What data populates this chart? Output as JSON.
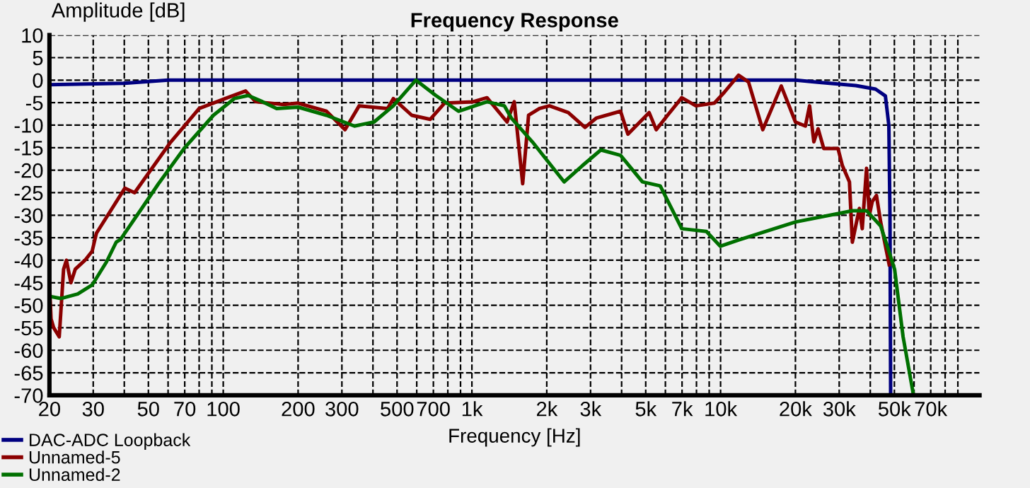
{
  "chart_data": {
    "type": "line",
    "title": "Frequency Response",
    "xlabel": "Frequency [Hz]",
    "ylabel": "Amplitude [dB]",
    "log": "x",
    "xlim": [
      20,
      110000
    ],
    "ylim": [
      -70,
      10
    ],
    "xticks": [
      20,
      30,
      {
        "value": 40,
        "label": null
      },
      50,
      {
        "value": 60,
        "label": null
      },
      70,
      {
        "value": 80,
        "label": null
      },
      {
        "value": 90,
        "label": null
      },
      100,
      200,
      300,
      {
        "value": 400,
        "label": null
      },
      500,
      {
        "value": 600,
        "label": null
      },
      700,
      {
        "value": 800,
        "label": null
      },
      {
        "value": 900,
        "label": null
      },
      {
        "value": 1000,
        "label": "1k"
      },
      {
        "value": 2000,
        "label": "2k"
      },
      {
        "value": 3000,
        "label": "3k"
      },
      {
        "value": 4000,
        "label": null
      },
      {
        "value": 5000,
        "label": "5k"
      },
      {
        "value": 6000,
        "label": null
      },
      {
        "value": 7000,
        "label": "7k"
      },
      {
        "value": 8000,
        "label": null
      },
      {
        "value": 9000,
        "label": null
      },
      {
        "value": 10000,
        "label": "10k"
      },
      {
        "value": 20000,
        "label": "20k"
      },
      {
        "value": 30000,
        "label": "30k"
      },
      {
        "value": 40000,
        "label": null
      },
      {
        "value": 50000,
        "label": "50k"
      },
      {
        "value": 60000,
        "label": null
      },
      {
        "value": 70000,
        "label": "70k"
      },
      {
        "value": 80000,
        "label": null
      },
      {
        "value": 90000,
        "label": null
      }
    ],
    "yticks": [
      10,
      5,
      0,
      -5,
      -10,
      -15,
      -20,
      -25,
      -30,
      -35,
      -40,
      -45,
      -50,
      -55,
      -60,
      -65,
      -70
    ],
    "grid": true,
    "line_style": "dashed",
    "legend": "bottom left",
    "series": [
      {
        "name": "DAC-ADC Loopback",
        "color": "#000080",
        "line_style": "solid",
        "x": [
          20,
          40,
          60,
          100,
          1000,
          10000,
          20000,
          25000,
          35000,
          42000,
          46000,
          47500,
          48000,
          48300
        ],
        "values": [
          -1,
          -0.7,
          0,
          0,
          0,
          0,
          0,
          -0.5,
          -1.2,
          -2,
          -3.5,
          -10,
          -30,
          -70
        ]
      },
      {
        "name": "Unnamed-5",
        "color": "#8b0000",
        "line_style": "solid",
        "x": [
          20,
          20.3,
          20.8,
          21.9,
          22.8,
          23.4,
          24.4,
          25.4,
          27.8,
          29.7,
          30.9,
          40.2,
          44,
          61,
          80,
          104,
          123,
          135,
          175,
          200,
          260,
          309,
          352,
          458,
          483,
          573,
          680,
          776,
          1010,
          1150,
          1385,
          1480,
          1600,
          1690,
          1870,
          2050,
          2440,
          2850,
          3170,
          3960,
          4240,
          5160,
          5510,
          6120,
          6980,
          7960,
          9440,
          10350,
          11810,
          12950,
          14780,
          17540,
          20000,
          21930,
          22800,
          23720,
          24680,
          26000,
          29670,
          30900,
          32980,
          33880,
          36150,
          37130,
          38630,
          39660,
          40720,
          42350,
          44030,
          47650
        ],
        "values": [
          -45,
          -53,
          -55,
          -57,
          -42,
          -40,
          -45,
          -42,
          -40,
          -38,
          -34,
          -24,
          -25,
          -14,
          -6.3,
          -3.9,
          -2.4,
          -4.8,
          -5.4,
          -5.1,
          -6.9,
          -11,
          -5.7,
          -6.3,
          -4.1,
          -7.8,
          -8.7,
          -5.1,
          -4.8,
          -3.9,
          -9.3,
          -4.8,
          -23,
          -7.8,
          -6.3,
          -5.7,
          -7.2,
          -10.5,
          -8.4,
          -6.9,
          -12,
          -7.2,
          -11,
          -7.8,
          -3.9,
          -5.7,
          -5.1,
          -2.7,
          1.1,
          -0.4,
          -11,
          -1.3,
          -9.3,
          -10.2,
          -5.7,
          -13.7,
          -10.8,
          -15.2,
          -15.2,
          -19,
          -22.6,
          -36,
          -28.5,
          -33,
          -19.6,
          -30,
          -27,
          -25.6,
          -31.5,
          -41
        ]
      },
      {
        "name": "Unnamed-2",
        "color": "#007000",
        "line_style": "solid",
        "x": [
          20,
          22.2,
          26,
          29.7,
          33.9,
          37.1,
          38.6,
          47,
          54.9,
          70,
          91.3,
          110.7,
          126,
          144,
          164,
          200,
          260,
          337,
          404,
          483,
          595,
          716,
          883,
          1150,
          1350,
          1440,
          1750,
          2350,
          2780,
          3300,
          3960,
          4850,
          5720,
          6980,
          8770,
          9980,
          11810,
          20000,
          33880,
          38630,
          44030,
          46900,
          50100,
          54200,
          59700,
          70000,
          81700,
          93300
        ],
        "values": [
          -48,
          -48.5,
          -47.5,
          -45.5,
          -40.4,
          -36,
          -35.4,
          -28.5,
          -23,
          -15,
          -7.8,
          -4.1,
          -3.4,
          -4.8,
          -6.3,
          -6,
          -7.8,
          -10.2,
          -9.3,
          -5.7,
          0,
          -3.4,
          -6.9,
          -4.8,
          -5.7,
          -8.4,
          -13.7,
          -22.6,
          -19,
          -15.5,
          -16.7,
          -22.6,
          -23.5,
          -33,
          -33.6,
          -36.9,
          -35.5,
          -31.5,
          -29,
          -29,
          -32.4,
          -37,
          -42,
          -57,
          -70,
          null,
          -70,
          -70
        ]
      }
    ]
  }
}
